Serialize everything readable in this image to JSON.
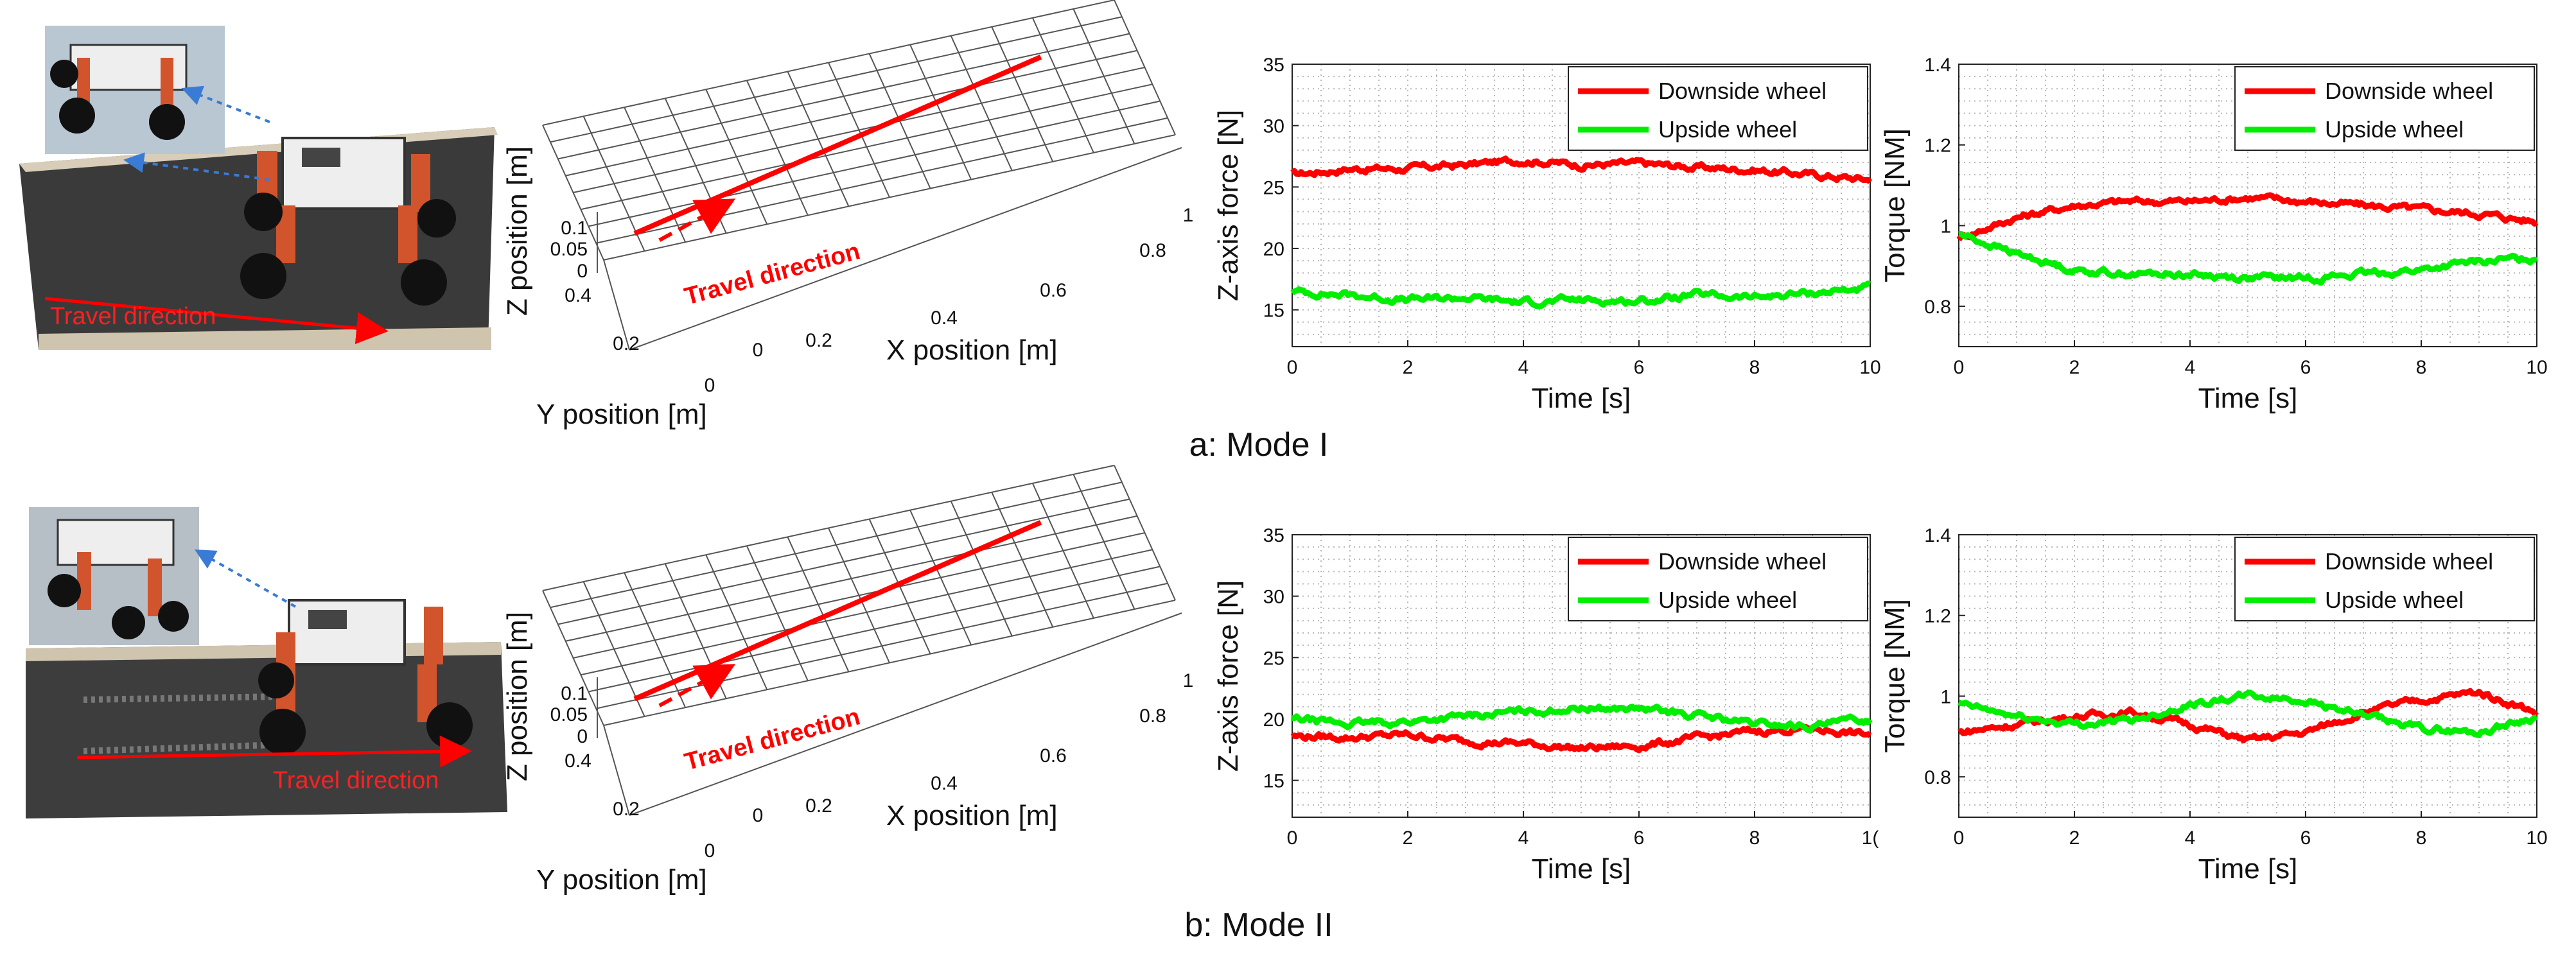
{
  "panels": [
    {
      "caption": "a: Mode I",
      "photo": {
        "label": "Travel direction"
      },
      "surface": {
        "xlabel": "X position [m]",
        "ylabel": "Y position [m]",
        "zlabel": "Z position [m]",
        "x_ticks": [
          "0",
          "0.2",
          "0.4",
          "0.6",
          "0.8",
          "1"
        ],
        "y_ticks": [
          "0",
          "0.2",
          "0.4"
        ],
        "z_ticks": [
          "0",
          "0.05",
          "0.1"
        ],
        "path_label": "Travel direction"
      }
    },
    {
      "caption": "b: Mode II",
      "photo": {
        "label": "Travel direction"
      },
      "surface": {
        "xlabel": "X position [m]",
        "ylabel": "Y position [m]",
        "zlabel": "Z position [m]",
        "x_ticks": [
          "0",
          "0.2",
          "0.4",
          "0.6",
          "0.8",
          "1"
        ],
        "y_ticks": [
          "0",
          "0.2",
          "0.4"
        ],
        "z_ticks": [
          "0",
          "0.05",
          "0.1"
        ],
        "path_label": "Travel direction"
      }
    }
  ],
  "colors": {
    "downside": "#ff0000",
    "upside": "#00ee00",
    "arrow": "#ff0000"
  },
  "chart_data": [
    {
      "type": "line",
      "xlabel": "Time  [s]",
      "ylabel": "Z-axis force [N]",
      "xlim": [
        0,
        10
      ],
      "ylim": [
        12,
        35
      ],
      "x_ticks": [
        "0",
        "2",
        "4",
        "6",
        "8",
        "10"
      ],
      "y_ticks": [
        "15",
        "20",
        "25",
        "30",
        "35"
      ],
      "legend": "top-right",
      "grid": true,
      "x": [
        0,
        1,
        2,
        3,
        4,
        5,
        6,
        7,
        8,
        9,
        10
      ],
      "series": [
        {
          "name": "Downside wheel",
          "values": [
            26.0,
            26.5,
            26.5,
            26.8,
            27.2,
            26.8,
            26.9,
            26.6,
            26.4,
            26.0,
            25.6
          ]
        },
        {
          "name": "Upside wheel",
          "values": [
            16.5,
            16.2,
            15.8,
            16.0,
            15.6,
            15.8,
            15.7,
            16.2,
            16.0,
            16.4,
            16.8
          ]
        }
      ]
    },
    {
      "type": "line",
      "xlabel": "Time [s]",
      "ylabel": "Torque [NM]",
      "xlim": [
        0,
        10
      ],
      "ylim": [
        0.7,
        1.4
      ],
      "x_ticks": [
        "0",
        "2",
        "4",
        "6",
        "8",
        "10"
      ],
      "y_ticks": [
        "0.8",
        "1",
        "1.2",
        "1.4"
      ],
      "legend": "top-right",
      "grid": true,
      "x": [
        0,
        1,
        2,
        3,
        4,
        5,
        6,
        7,
        8,
        9,
        10
      ],
      "series": [
        {
          "name": "Downside wheel",
          "values": [
            0.97,
            1.02,
            1.05,
            1.06,
            1.06,
            1.07,
            1.06,
            1.05,
            1.04,
            1.03,
            1.01
          ]
        },
        {
          "name": "Upside wheel",
          "values": [
            0.98,
            0.93,
            0.89,
            0.88,
            0.88,
            0.87,
            0.87,
            0.88,
            0.89,
            0.91,
            0.92
          ]
        }
      ]
    },
    {
      "type": "line",
      "xlabel": "Time  [s]",
      "ylabel": "Z-axis force [N]",
      "xlim": [
        0,
        10
      ],
      "ylim": [
        12,
        35
      ],
      "x_ticks": [
        "0",
        "2",
        "4",
        "6",
        "8",
        "1("
      ],
      "y_ticks": [
        "15",
        "20",
        "25",
        "30",
        "35"
      ],
      "legend": "top-right",
      "grid": true,
      "x": [
        0,
        1,
        2,
        3,
        4,
        5,
        6,
        7,
        8,
        9,
        10
      ],
      "series": [
        {
          "name": "Downside wheel",
          "values": [
            18.6,
            18.5,
            18.7,
            18.2,
            18.0,
            17.6,
            17.8,
            18.4,
            19.0,
            19.2,
            18.7
          ]
        },
        {
          "name": "Upside wheel",
          "values": [
            20.0,
            19.6,
            19.8,
            20.2,
            20.6,
            20.9,
            20.8,
            20.3,
            19.6,
            19.4,
            20.0
          ]
        }
      ]
    },
    {
      "type": "line",
      "xlabel": "Time [s]",
      "ylabel": "Torque [NM]",
      "xlim": [
        0,
        10
      ],
      "ylim": [
        0.7,
        1.4
      ],
      "x_ticks": [
        "0",
        "2",
        "4",
        "6",
        "8",
        "10"
      ],
      "y_ticks": [
        "0.8",
        "1",
        "1.2",
        "1.4"
      ],
      "legend": "top-right",
      "grid": true,
      "x": [
        0,
        1,
        2,
        3,
        4,
        5,
        6,
        7,
        8,
        9,
        10
      ],
      "series": [
        {
          "name": "Downside wheel",
          "values": [
            0.91,
            0.93,
            0.95,
            0.96,
            0.93,
            0.89,
            0.91,
            0.96,
            0.99,
            1.01,
            0.96
          ]
        },
        {
          "name": "Upside wheel",
          "values": [
            0.98,
            0.95,
            0.93,
            0.94,
            0.98,
            1.0,
            0.99,
            0.95,
            0.92,
            0.91,
            0.95
          ]
        }
      ]
    }
  ]
}
